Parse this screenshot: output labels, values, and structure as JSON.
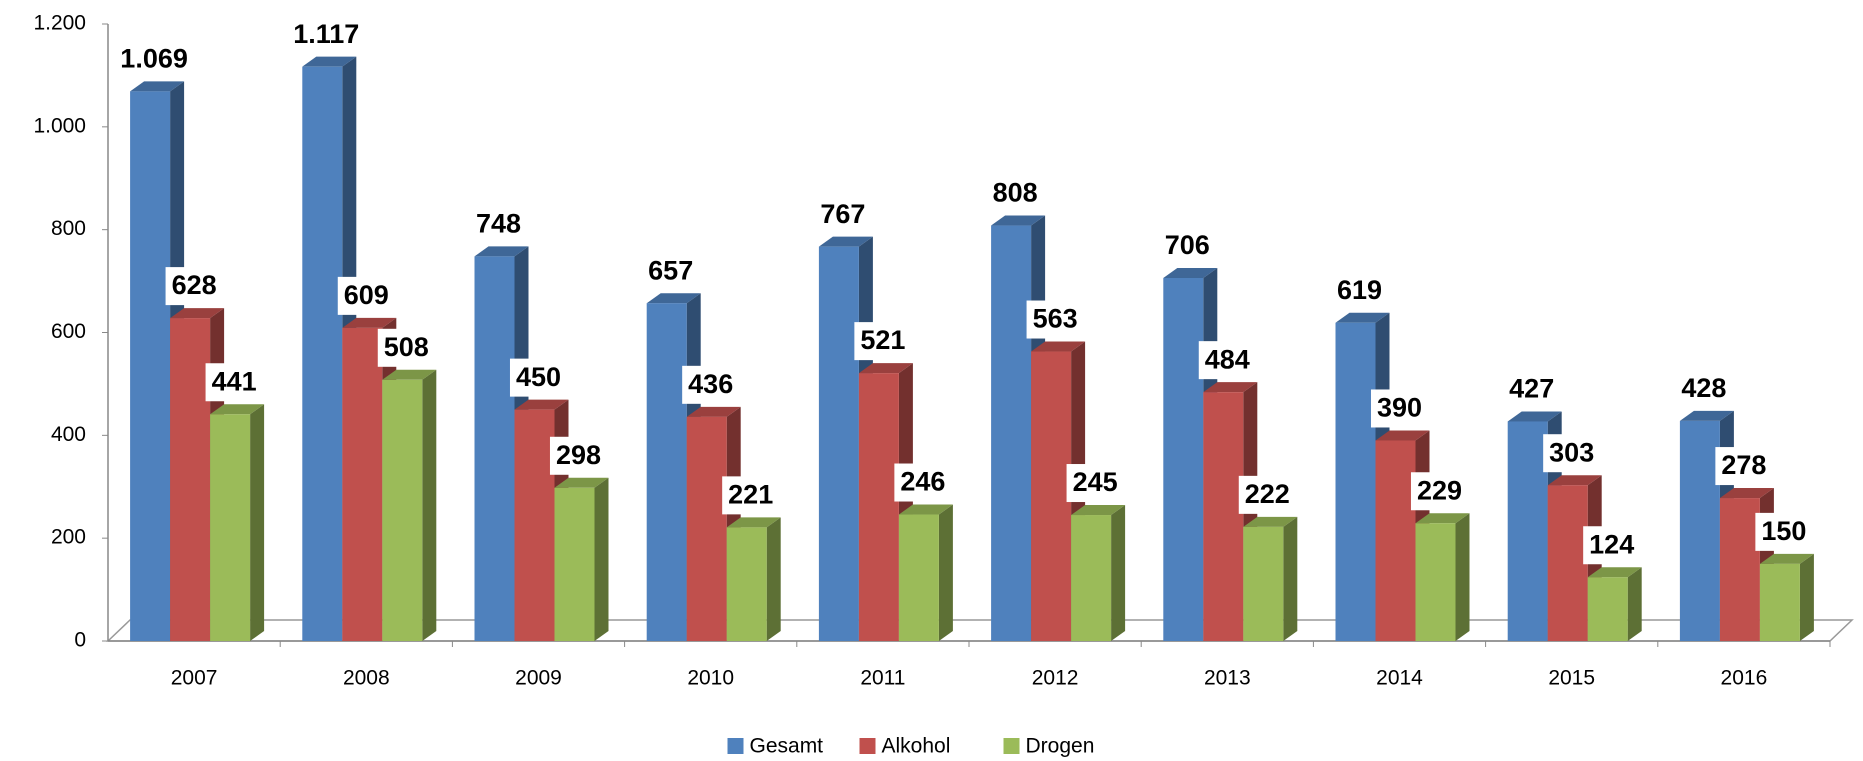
{
  "chart_data": {
    "type": "bar3d",
    "categories": [
      "2007",
      "2008",
      "2009",
      "2010",
      "2011",
      "2012",
      "2013",
      "2014",
      "2015",
      "2016"
    ],
    "series": [
      {
        "name": "Gesamt",
        "color": "#4f81bd",
        "values": [
          1069,
          1117,
          748,
          657,
          767,
          808,
          706,
          619,
          427,
          428
        ],
        "value_labels": [
          "1.069",
          "1.117",
          "748",
          "657",
          "767",
          "808",
          "706",
          "619",
          "427",
          "428"
        ]
      },
      {
        "name": "Alkohol",
        "color": "#c0504d",
        "values": [
          628,
          609,
          450,
          436,
          521,
          563,
          484,
          390,
          303,
          278
        ]
      },
      {
        "name": "Drogen",
        "color": "#9bbb59",
        "values": [
          441,
          508,
          298,
          221,
          246,
          245,
          222,
          229,
          124,
          150
        ]
      }
    ],
    "ylim": [
      0,
      1200
    ],
    "yticks": [
      0,
      200,
      400,
      600,
      800,
      {
        "value": 1000,
        "label": "1.000"
      },
      {
        "value": 1200,
        "label": "1.200"
      }
    ],
    "grid": false,
    "legend": "bottom"
  }
}
